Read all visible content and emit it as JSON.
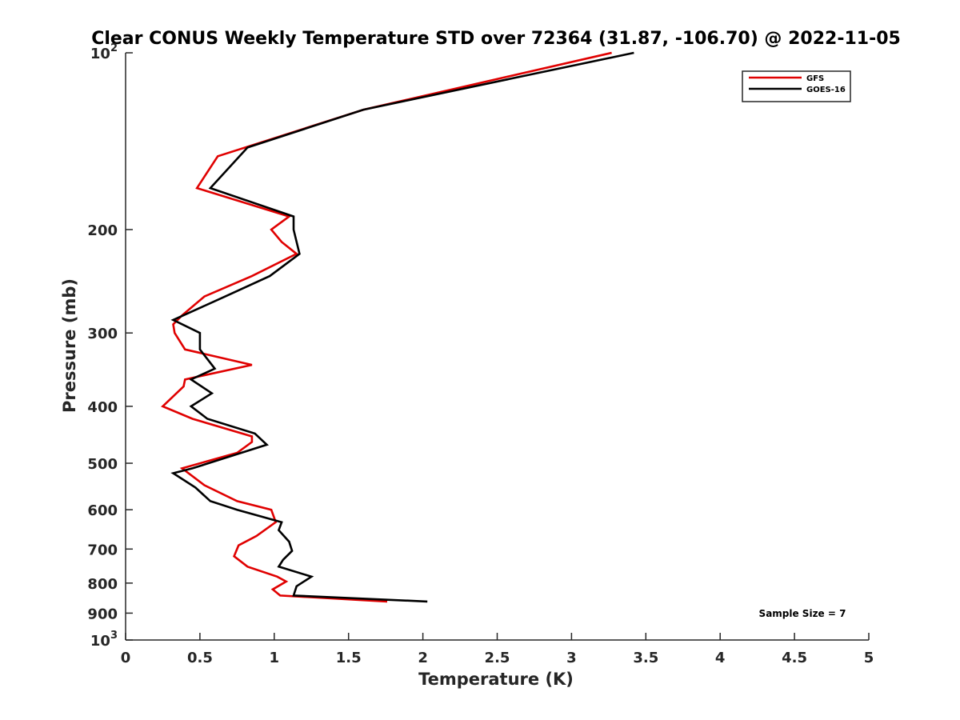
{
  "chart_data": {
    "type": "line",
    "title": "Clear CONUS Weekly Temperature STD over 72364 (31.87, -106.70) @ 2022-11-05",
    "xlabel": "Temperature (K)",
    "ylabel": "Pressure (mb)",
    "xlim": [
      0,
      5
    ],
    "ylim": [
      100,
      1000
    ],
    "y_scale": "log",
    "y_reversed": true,
    "grid": false,
    "legend_position": "top-right",
    "x_ticks": [
      0,
      0.5,
      1,
      1.5,
      2,
      2.5,
      3,
      3.5,
      4,
      4.5,
      5
    ],
    "x_tick_labels": [
      "0",
      "0.5",
      "1",
      "1.5",
      "2",
      "2.5",
      "3",
      "3.5",
      "4",
      "4.5",
      "5"
    ],
    "y_ticks": [
      100,
      200,
      300,
      400,
      500,
      600,
      700,
      800,
      900,
      1000
    ],
    "y_tick_labels": [
      {
        "base": "10",
        "exp": "2"
      },
      {
        "base": "200",
        "exp": ""
      },
      {
        "base": "300",
        "exp": ""
      },
      {
        "base": "400",
        "exp": ""
      },
      {
        "base": "500",
        "exp": ""
      },
      {
        "base": "600",
        "exp": ""
      },
      {
        "base": "700",
        "exp": ""
      },
      {
        "base": "800",
        "exp": ""
      },
      {
        "base": "900",
        "exp": ""
      },
      {
        "base": "10",
        "exp": "3"
      }
    ],
    "series": [
      {
        "name": "GFS",
        "color": "#e00000",
        "points": [
          [
            3.27,
            100
          ],
          [
            1.6,
            125
          ],
          [
            0.62,
            150
          ],
          [
            0.48,
            170
          ],
          [
            1.1,
            190
          ],
          [
            0.98,
            200
          ],
          [
            1.05,
            210
          ],
          [
            1.15,
            220
          ],
          [
            0.85,
            240
          ],
          [
            0.53,
            260
          ],
          [
            0.38,
            280
          ],
          [
            0.32,
            290
          ],
          [
            0.33,
            300
          ],
          [
            0.4,
            320
          ],
          [
            0.85,
            340
          ],
          [
            0.4,
            360
          ],
          [
            0.39,
            370
          ],
          [
            0.25,
            400
          ],
          [
            0.45,
            420
          ],
          [
            0.85,
            450
          ],
          [
            0.85,
            460
          ],
          [
            0.75,
            480
          ],
          [
            0.38,
            510
          ],
          [
            0.53,
            545
          ],
          [
            0.75,
            580
          ],
          [
            0.98,
            600
          ],
          [
            1.01,
            630
          ],
          [
            0.88,
            665
          ],
          [
            0.76,
            690
          ],
          [
            0.73,
            720
          ],
          [
            0.82,
            750
          ],
          [
            1.02,
            780
          ],
          [
            1.08,
            795
          ],
          [
            0.99,
            820
          ],
          [
            1.04,
            840
          ],
          [
            1.76,
            860
          ]
        ]
      },
      {
        "name": "GOES-16",
        "color": "#000000",
        "points": [
          [
            3.42,
            100
          ],
          [
            1.6,
            125
          ],
          [
            0.82,
            145
          ],
          [
            0.57,
            170
          ],
          [
            1.13,
            190
          ],
          [
            1.13,
            200
          ],
          [
            1.17,
            220
          ],
          [
            0.97,
            240
          ],
          [
            0.67,
            260
          ],
          [
            0.32,
            285
          ],
          [
            0.5,
            300
          ],
          [
            0.5,
            320
          ],
          [
            0.6,
            345
          ],
          [
            0.44,
            360
          ],
          [
            0.58,
            380
          ],
          [
            0.44,
            400
          ],
          [
            0.55,
            420
          ],
          [
            0.87,
            445
          ],
          [
            0.95,
            465
          ],
          [
            0.45,
            510
          ],
          [
            0.32,
            520
          ],
          [
            0.47,
            550
          ],
          [
            0.57,
            580
          ],
          [
            0.75,
            600
          ],
          [
            1.05,
            630
          ],
          [
            1.03,
            650
          ],
          [
            1.1,
            680
          ],
          [
            1.12,
            705
          ],
          [
            1.06,
            730
          ],
          [
            1.03,
            750
          ],
          [
            1.25,
            780
          ],
          [
            1.15,
            810
          ],
          [
            1.13,
            840
          ],
          [
            2.03,
            860
          ]
        ]
      }
    ],
    "annotation": "Sample Size = 7"
  }
}
